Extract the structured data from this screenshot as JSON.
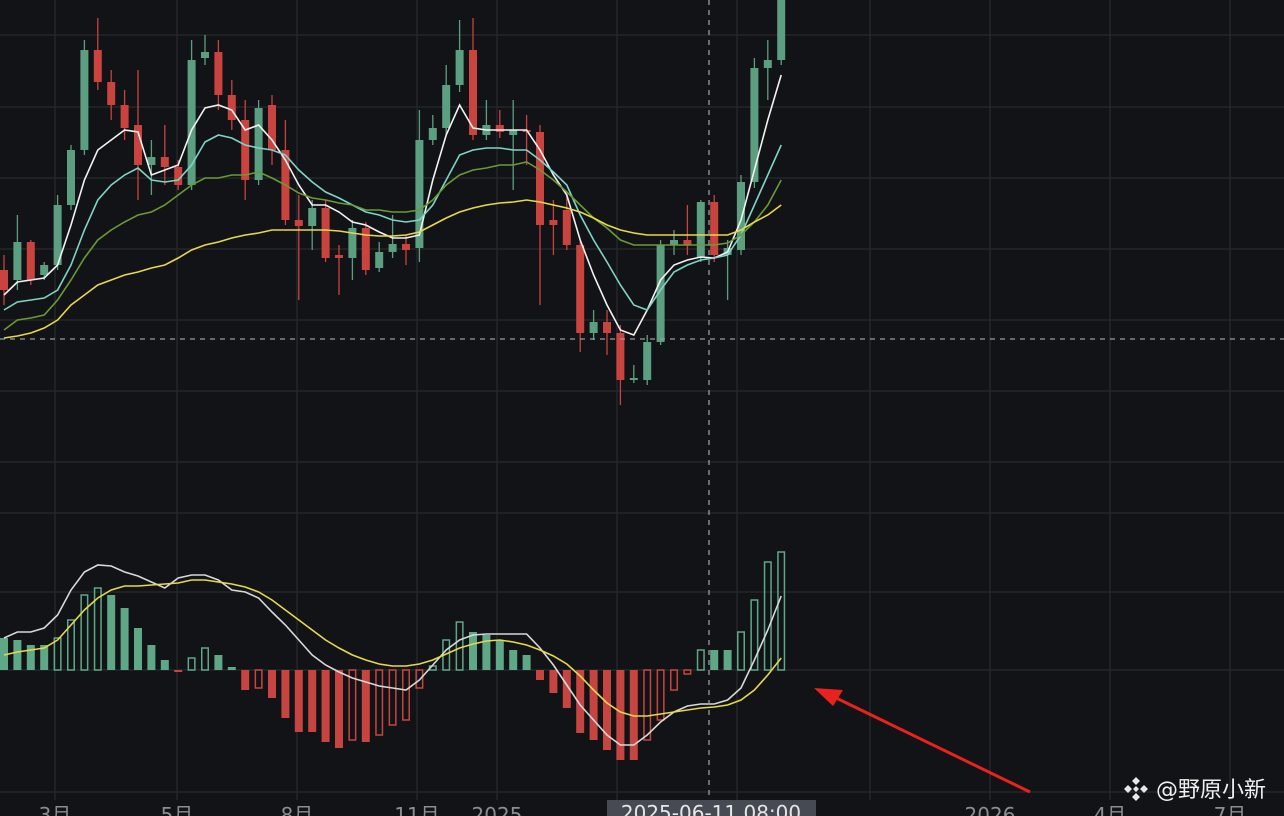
{
  "chart_data": [
    {
      "type": "candlestick",
      "ylim": [
        0,
        100
      ],
      "up_color": "#5b9f80",
      "down_color": "#c9433f",
      "open": [
        46,
        44,
        51.6,
        45,
        47,
        59,
        70,
        90,
        83.6,
        79,
        75,
        67,
        68.6,
        66.6,
        63,
        88.4,
        89.6,
        81,
        76,
        64,
        79,
        70,
        56,
        54.8,
        58.4,
        49,
        48.4,
        54.4,
        46.4,
        49.6,
        51.2,
        50.4,
        72,
        74.4,
        83,
        90,
        73,
        75,
        73,
        74,
        73.6,
        56,
        58,
        51,
        33.4,
        35.6,
        33.4,
        24,
        24,
        31.6,
        51,
        52,
        48.4,
        59.6,
        49,
        50,
        63.6,
        86.4,
        88
      ],
      "high": [
        49,
        57,
        52,
        47.6,
        61,
        71,
        92,
        96.4,
        86,
        82,
        86,
        72,
        75,
        68,
        92,
        93,
        92,
        84,
        80,
        80,
        81,
        76,
        61,
        60,
        60,
        51,
        56,
        55.6,
        51.6,
        57,
        53,
        78,
        77,
        87,
        96,
        96.4,
        80,
        78,
        80,
        77,
        75,
        60,
        61,
        52,
        38,
        38,
        35,
        27,
        33,
        52,
        54,
        59,
        60,
        61,
        52,
        65,
        88.4,
        92,
        100
      ],
      "low": [
        39,
        42,
        43,
        44,
        46,
        58,
        69,
        82,
        76,
        72,
        60,
        61,
        63,
        62,
        62,
        87,
        78,
        74,
        60,
        63,
        67,
        55,
        40,
        50,
        47.6,
        41,
        44,
        45,
        45.6,
        48.4,
        47,
        47.6,
        71,
        73,
        81.6,
        72,
        72,
        72.4,
        62,
        67,
        39,
        49,
        50,
        29.6,
        32,
        29,
        19,
        23.4,
        23,
        31,
        49,
        49,
        47.6,
        47.6,
        40,
        49,
        62.4,
        80,
        87
      ],
      "close": [
        42,
        51.6,
        44,
        47,
        59,
        70,
        90,
        83.6,
        79,
        74.4,
        67,
        68.6,
        66.6,
        63,
        88,
        89.6,
        81,
        76,
        64,
        78.4,
        70,
        56,
        54.8,
        58.4,
        48.4,
        48.4,
        54.4,
        46,
        49.6,
        51.2,
        50,
        72,
        74.4,
        83,
        90,
        73,
        75,
        73.6,
        74,
        73.6,
        55,
        55,
        51,
        33.4,
        35.6,
        33.4,
        24,
        24.4,
        31.6,
        51,
        52,
        51,
        59.6,
        49,
        50.4,
        63.6,
        86.4,
        88,
        100
      ],
      "moving_averages": [
        {
          "color": "#f2f2f2",
          "values": [
            41,
            43.6,
            44,
            44.4,
            47,
            55,
            64,
            70,
            72,
            74,
            73.6,
            65,
            66,
            67,
            74,
            78.4,
            79,
            78,
            74,
            75,
            72,
            68,
            63,
            59,
            59,
            57.6,
            55.6,
            55,
            53.6,
            52.4,
            52.4,
            53,
            64,
            73,
            79,
            74.4,
            74,
            74,
            74,
            74,
            70,
            65,
            61,
            52,
            45,
            39,
            34,
            33,
            38,
            44,
            47,
            48,
            48.6,
            48.4,
            49.6,
            56,
            66,
            76,
            85
          ]
        },
        {
          "color": "#7fd4c8",
          "values": [
            38,
            39.6,
            40,
            40.4,
            42,
            47,
            54,
            60,
            63,
            65,
            66.4,
            64,
            63.6,
            64,
            67,
            71.6,
            73,
            72.4,
            71,
            70.4,
            70,
            69,
            66,
            63.6,
            61.6,
            60.4,
            59,
            57.6,
            57,
            56,
            55.6,
            56,
            59,
            64,
            69,
            70,
            70.4,
            70.4,
            70,
            70,
            68,
            65.6,
            63,
            57,
            52,
            47.6,
            43,
            39,
            38,
            42,
            45.6,
            47,
            48,
            48.4,
            49,
            53,
            59,
            65,
            71
          ]
        },
        {
          "color": "#6a9a35",
          "values": [
            34,
            36,
            36.4,
            37,
            40,
            44,
            48.4,
            52,
            54,
            55.6,
            57,
            57.6,
            59,
            61,
            63,
            64.4,
            64.4,
            65,
            65,
            65.6,
            64.4,
            63,
            61.4,
            60.4,
            60,
            59.4,
            59,
            58,
            58,
            57.6,
            57.6,
            58,
            60,
            63,
            65,
            66,
            66.4,
            67,
            67,
            67.6,
            66,
            64,
            61.6,
            59,
            56.4,
            54.4,
            52,
            51,
            51,
            51,
            51,
            51,
            51,
            51,
            51.4,
            53,
            55.6,
            59,
            64
          ]
        },
        {
          "color": "#e8d84a",
          "values": [
            32.4,
            32.8,
            33.4,
            34.4,
            36,
            39,
            41,
            43,
            44,
            45,
            45.6,
            46.4,
            47,
            48.4,
            50,
            51,
            51.6,
            52.4,
            53,
            53.4,
            54,
            54,
            54,
            54,
            54,
            53.8,
            53.4,
            53,
            52.8,
            52.8,
            53,
            53.6,
            55,
            56.4,
            57.6,
            58.4,
            59,
            59.4,
            59.6,
            60,
            59.6,
            59,
            58.4,
            57.6,
            56.4,
            55,
            54,
            53.4,
            53,
            53,
            53,
            53,
            53,
            53,
            53,
            54,
            55.6,
            57,
            59
          ]
        }
      ]
    },
    {
      "type": "macd",
      "ylim": [
        -26,
        26
      ],
      "up_color": "#5fa887",
      "down_color": "#c74540",
      "histogram": [
        6.4,
        6,
        5,
        5,
        6.4,
        10,
        15,
        16.4,
        15,
        12.4,
        8.4,
        5,
        2,
        -0.4,
        2.4,
        4.4,
        3,
        0.6,
        -4,
        -3.6,
        -5.6,
        -9.6,
        -12.4,
        -12.4,
        -14.4,
        -15.6,
        -14,
        -14.4,
        -13,
        -11,
        -10,
        -3.6,
        0.8,
        6,
        9.6,
        7.6,
        7,
        6,
        4,
        3,
        -2,
        -4.6,
        -7.6,
        -12.6,
        -14,
        -16,
        -18,
        -18,
        -14,
        -10,
        -4,
        -0.8,
        4,
        4,
        4,
        7.6,
        14,
        21.6,
        23.6
      ],
      "lines": [
        {
          "color": "#d8d8d8",
          "values": [
            6.4,
            7.6,
            7.6,
            8.4,
            11,
            16,
            19.6,
            21,
            20.8,
            19.6,
            18.8,
            17.6,
            16.4,
            18.4,
            19,
            19,
            18,
            16,
            15.6,
            14.4,
            11.6,
            9,
            6,
            3,
            1,
            -0.4,
            -1.6,
            -2.4,
            -3.2,
            -3.6,
            -4,
            -2,
            1,
            4,
            6,
            7,
            7.2,
            7.2,
            7.2,
            7.2,
            4.4,
            1,
            -3,
            -7,
            -10,
            -13,
            -15,
            -15,
            -13,
            -10.4,
            -8.4,
            -7.2,
            -6.8,
            -6.8,
            -6,
            -3.6,
            2,
            8,
            14.8
          ]
        },
        {
          "color": "#e6d94a",
          "values": [
            3,
            3.6,
            4,
            4.4,
            6,
            9,
            12,
            14.4,
            16,
            16.8,
            16.8,
            17,
            17.2,
            17.4,
            18,
            18,
            17.6,
            17.2,
            16.6,
            15.6,
            14,
            12,
            10,
            8,
            6,
            4.4,
            3,
            2,
            1.2,
            0.8,
            0.8,
            1.2,
            2,
            3.2,
            4.4,
            5.2,
            5.8,
            6,
            5.6,
            5,
            4,
            2.8,
            1.2,
            -1.2,
            -4,
            -6.6,
            -8.4,
            -9.2,
            -9.2,
            -8.8,
            -8.4,
            -8,
            -7.6,
            -7.4,
            -7,
            -6,
            -4,
            -1,
            2.4
          ]
        }
      ]
    }
  ],
  "x_axis_labels": [
    "3月",
    "5月",
    "8月",
    "11月",
    "2025",
    "2026",
    "4月",
    "7月"
  ],
  "crosshair_label": "2025-06-11 08:00",
  "watermark": "@野原小新"
}
